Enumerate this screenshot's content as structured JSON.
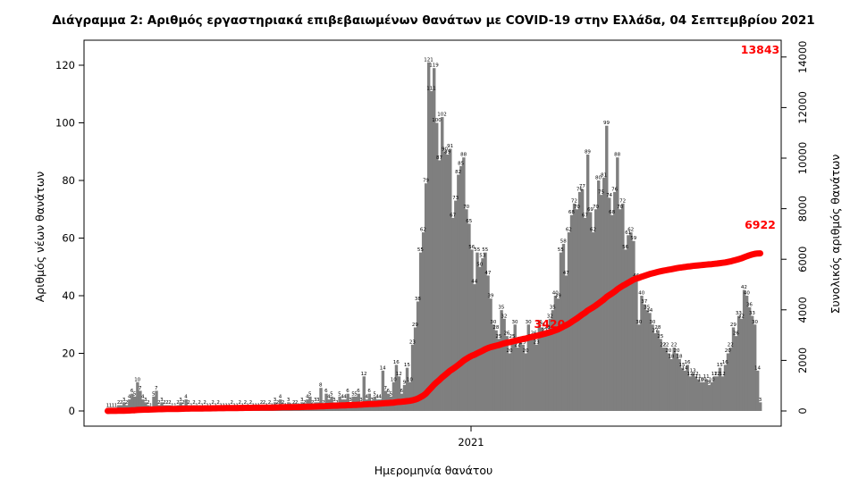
{
  "chart_data": {
    "type": "bar",
    "title": "Διάγραμμα 2: Αριθμός εργαστηριακά επιβεβαιωμένων θανάτων με COVID-19 στην Ελλάδα, 04 Σεπτεμβρίου 2021",
    "xlabel": "Ημερομηνία θανάτου",
    "ylabel": "Αριθμός νέων θανάτων",
    "y2label": "Συνολικός αριθμός θανάτων",
    "x_tick_labels": [
      "2021"
    ],
    "ylim": [
      0,
      120
    ],
    "y_ticks": [
      0,
      20,
      40,
      60,
      80,
      100,
      120
    ],
    "y2lim": [
      0,
      14000
    ],
    "y2_ticks": [
      0,
      2000,
      4000,
      6000,
      8000,
      10000,
      12000,
      14000
    ],
    "grid": false,
    "series": [
      {
        "type": "bar",
        "color": "#7f7f7f",
        "values": [
          1,
          1,
          1,
          1,
          2,
          2,
          3,
          2,
          4,
          6,
          5,
          10,
          7,
          4,
          3,
          2,
          1,
          5,
          7,
          2,
          3,
          2,
          2,
          2,
          1,
          1,
          2,
          3,
          2,
          4,
          2,
          1,
          2,
          1,
          2,
          1,
          2,
          1,
          1,
          2,
          1,
          2,
          1,
          1,
          1,
          1,
          2,
          1,
          1,
          2,
          1,
          2,
          1,
          2,
          1,
          1,
          1,
          2,
          2,
          1,
          2,
          1,
          3,
          2,
          4,
          2,
          1,
          3,
          1,
          2,
          2,
          1,
          3,
          2,
          4,
          5,
          2,
          3,
          3,
          8,
          2,
          6,
          4,
          5,
          3,
          2,
          5,
          4,
          4,
          6,
          3,
          5,
          5,
          6,
          3,
          12,
          4,
          6,
          3,
          5,
          4,
          4,
          14,
          7,
          6,
          5,
          10,
          16,
          12,
          6,
          9,
          15,
          10,
          23,
          29,
          38,
          55,
          62,
          79,
          121,
          111,
          119,
          100,
          87,
          102,
          90,
          89,
          91,
          67,
          73,
          82,
          85,
          88,
          70,
          65,
          56,
          44,
          55,
          50,
          53,
          55,
          47,
          39,
          30,
          28,
          25,
          35,
          32,
          26,
          20,
          25,
          30,
          22,
          24,
          23,
          20,
          30,
          25,
          26,
          23,
          30,
          29,
          27,
          28,
          32,
          35,
          40,
          39,
          55,
          58,
          47,
          62,
          68,
          72,
          70,
          76,
          77,
          67,
          89,
          69,
          62,
          70,
          80,
          75,
          81,
          99,
          74,
          68,
          76,
          88,
          70,
          72,
          56,
          61,
          62,
          59,
          46,
          30,
          40,
          37,
          35,
          34,
          30,
          27,
          28,
          25,
          22,
          22,
          20,
          18,
          22,
          20,
          18,
          15,
          14,
          16,
          12,
          13,
          12,
          11,
          10,
          10,
          11,
          9,
          10,
          12,
          12,
          15,
          12,
          16,
          20,
          22,
          29,
          26,
          33,
          32,
          42,
          40,
          36,
          33,
          30,
          14,
          3
        ]
      },
      {
        "type": "line",
        "color": "#ff0000"
      }
    ],
    "annotations": [
      "3420",
      "6922",
      "13843"
    ]
  }
}
